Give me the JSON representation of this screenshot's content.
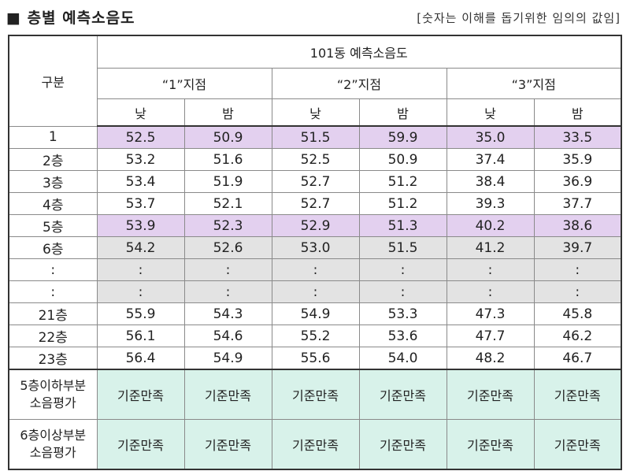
{
  "title": "■ 층별 예측소음도",
  "note": "[숫자는 이해를 돕기위한 임의의 값임]",
  "table": {
    "row_header": "구분",
    "building": "101동 예측소음도",
    "points": [
      "“1”지점",
      "“2”지점",
      "“3”지점"
    ],
    "periods": [
      "낮",
      "밤",
      "낮",
      "밤",
      "낮",
      "밤"
    ],
    "rows": [
      {
        "label": "1",
        "values": [
          "52.5",
          "50.9",
          "51.5",
          "59.9",
          "35.0",
          "33.5"
        ]
      },
      {
        "label": "2층",
        "values": [
          "53.2",
          "51.6",
          "52.5",
          "50.9",
          "37.4",
          "35.9"
        ]
      },
      {
        "label": "3층",
        "values": [
          "53.4",
          "51.9",
          "52.7",
          "51.2",
          "38.4",
          "36.9"
        ]
      },
      {
        "label": "4층",
        "values": [
          "53.7",
          "52.1",
          "52.7",
          "51.2",
          "39.3",
          "37.7"
        ]
      },
      {
        "label": "5층",
        "values": [
          "53.9",
          "52.3",
          "52.9",
          "51.3",
          "40.2",
          "38.6"
        ]
      },
      {
        "label": "6층",
        "values": [
          "54.2",
          "52.6",
          "53.0",
          "51.5",
          "41.2",
          "39.7"
        ]
      },
      {
        "label": ":",
        "values": [
          ":",
          ":",
          ":",
          ":",
          ":",
          ":"
        ]
      },
      {
        "label": ":",
        "values": [
          ":",
          ":",
          ":",
          ":",
          ":",
          ":"
        ]
      },
      {
        "label": "21층",
        "values": [
          "55.9",
          "54.3",
          "54.9",
          "53.3",
          "47.3",
          "45.8"
        ]
      },
      {
        "label": "22층",
        "values": [
          "56.1",
          "54.6",
          "55.2",
          "53.6",
          "47.7",
          "46.2"
        ]
      },
      {
        "label": "23층",
        "values": [
          "56.4",
          "54.9",
          "55.6",
          "54.0",
          "48.2",
          "46.7"
        ]
      }
    ],
    "evaluations": [
      {
        "label_line1": "5층이하부분",
        "label_line2": "소음평가",
        "values": [
          "기준만족",
          "기준만족",
          "기준만족",
          "기준만족",
          "기준만족",
          "기준만족"
        ]
      },
      {
        "label_line1": "6층이상부분",
        "label_line2": "소음평가",
        "values": [
          "기준만족",
          "기준만족",
          "기준만족",
          "기준만족",
          "기준만족",
          "기준만족"
        ]
      }
    ],
    "colors": {
      "highlight": "#e3d0ef",
      "shaded": "#e3e3e3",
      "evaluation": "#d8f2ea"
    }
  }
}
